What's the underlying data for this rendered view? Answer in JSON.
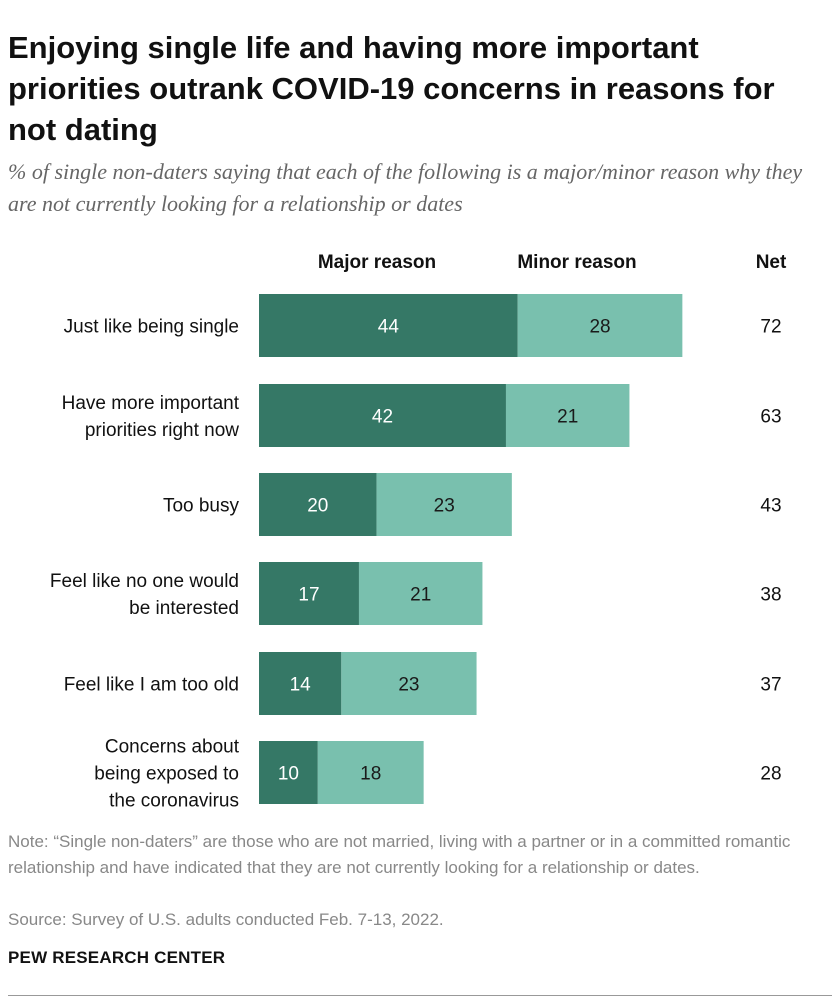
{
  "title": "Enjoying single life and having more important priorities outrank COVID-19 concerns in reasons for not dating",
  "subtitle": "% of single non-daters saying that each of the following is a major/minor reason why they are not currently looking for a relationship or dates",
  "note": "Note: “Single non-daters” are those who are not married, living with a partner or in a committed romantic relationship and have indicated that they are not currently looking for a relationship or dates.",
  "source": "Source: Survey of U.S. adults conducted Feb. 7-13, 2022.",
  "brand": "PEW RESEARCH CENTER",
  "colors": {
    "major": "#357866",
    "minor": "#79c0ae",
    "major_text": "#ffffff",
    "minor_text": "#1a1a1a"
  },
  "chart_data": {
    "type": "bar",
    "orientation": "horizontal",
    "stacked": true,
    "column_headers": {
      "major": "Major reason",
      "minor": "Minor reason",
      "net": "Net"
    },
    "categories": [
      [
        "Just like being single"
      ],
      [
        "Have more important",
        "priorities right now"
      ],
      [
        "Too busy"
      ],
      [
        "Feel like no one would",
        "be interested"
      ],
      [
        "Feel like I am too old"
      ],
      [
        "Concerns about",
        "being exposed to",
        "the coronavirus"
      ]
    ],
    "series": [
      {
        "name": "Major reason",
        "values": [
          44,
          42,
          20,
          17,
          14,
          10
        ]
      },
      {
        "name": "Minor reason",
        "values": [
          28,
          21,
          23,
          21,
          23,
          18
        ]
      }
    ],
    "net": [
      72,
      63,
      43,
      38,
      37,
      28
    ],
    "xlim": [
      0,
      100
    ]
  }
}
